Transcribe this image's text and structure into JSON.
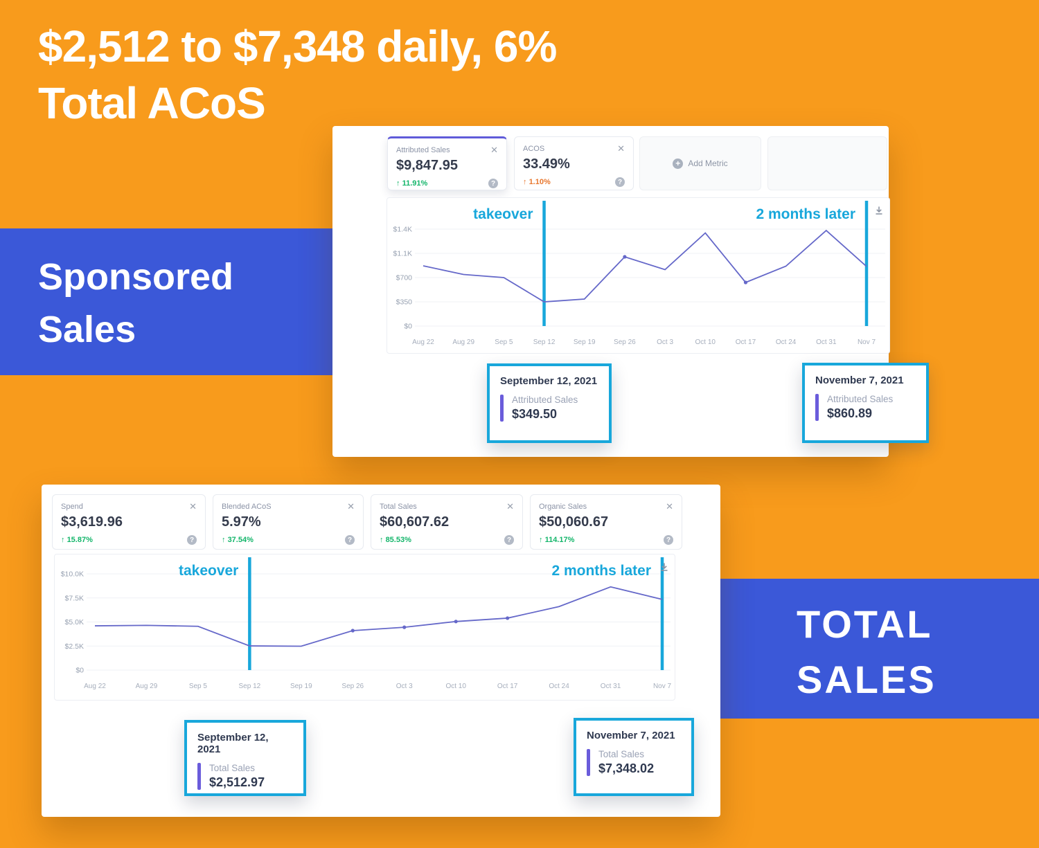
{
  "canvas": {
    "bg": "#F89B1C",
    "banner_blue": "#3B58D8",
    "accent_cyan": "#18A7DB",
    "line_purple": "#6568C9"
  },
  "headline": {
    "line1": "$2,512 to $7,348 daily, 6%",
    "line2": "Total ACoS"
  },
  "banner_left": {
    "line1": "Sponsored",
    "line2": "Sales"
  },
  "banner_right": {
    "line1": "TOTAL",
    "line2": "SALES"
  },
  "icons": {
    "close": "✕",
    "help": "?",
    "add": "+",
    "up": "↑"
  },
  "dashboard1": {
    "metrics": [
      {
        "label": "Attributed Sales",
        "value": "$9,847.95",
        "change": "11.91%"
      },
      {
        "label": "ACOS",
        "value": "33.49%",
        "change": "1.10%"
      }
    ],
    "add_metric": "Add Metric",
    "tooltips": [
      {
        "date": "September 12, 2021",
        "series": "Attributed Sales",
        "value": "$349.50"
      },
      {
        "date": "November 7, 2021",
        "series": "Attributed Sales",
        "value": "$860.89"
      }
    ]
  },
  "dashboard2": {
    "metrics": [
      {
        "label": "Spend",
        "value": "$3,619.96",
        "change": "15.87%"
      },
      {
        "label": "Blended ACoS",
        "value": "5.97%",
        "change": "37.54%"
      },
      {
        "label": "Total Sales",
        "value": "$60,607.62",
        "change": "85.53%"
      },
      {
        "label": "Organic Sales",
        "value": "$50,060.67",
        "change": "114.17%"
      }
    ],
    "tooltips": [
      {
        "date": "September 12, 2021",
        "series": "Total Sales",
        "value": "$2,512.97"
      },
      {
        "date": "November 7, 2021",
        "series": "Total Sales",
        "value": "$7,348.02"
      }
    ]
  },
  "chart_data": [
    {
      "type": "line",
      "name": "sponsored-attributed-sales",
      "title": "",
      "categories": [
        "Aug 22",
        "Aug 29",
        "Sep 5",
        "Sep 12",
        "Sep 19",
        "Sep 26",
        "Oct 3",
        "Oct 10",
        "Oct 17",
        "Oct 24",
        "Oct 31",
        "Nov 7"
      ],
      "values": [
        870,
        745,
        700,
        349.5,
        390,
        1000,
        815,
        1345,
        630,
        865,
        1380,
        860.89
      ],
      "ylim": [
        0,
        1400
      ],
      "yticks": [
        {
          "v": 0,
          "label": "$0"
        },
        {
          "v": 350,
          "label": "$350"
        },
        {
          "v": 700,
          "label": "$700"
        },
        {
          "v": 1050,
          "label": "$1.1K"
        },
        {
          "v": 1400,
          "label": "$1.4K"
        }
      ],
      "markers": [
        5,
        8
      ],
      "vlines": [
        {
          "index": 3,
          "label": "takeover"
        },
        {
          "index": 11,
          "label": "2 months later"
        }
      ],
      "grid": true,
      "legend": "none"
    },
    {
      "type": "line",
      "name": "total-sales",
      "title": "",
      "categories": [
        "Aug 22",
        "Aug 29",
        "Sep 5",
        "Sep 12",
        "Sep 19",
        "Sep 26",
        "Oct 3",
        "Oct 10",
        "Oct 17",
        "Oct 24",
        "Oct 31",
        "Nov 7"
      ],
      "values": [
        4600,
        4650,
        4550,
        2512.97,
        2480,
        4100,
        4450,
        5050,
        5400,
        6600,
        8650,
        7348.02
      ],
      "ylim": [
        0,
        10000
      ],
      "yticks": [
        {
          "v": 0,
          "label": "$0"
        },
        {
          "v": 2500,
          "label": "$2.5K"
        },
        {
          "v": 5000,
          "label": "$5.0K"
        },
        {
          "v": 7500,
          "label": "$7.5K"
        },
        {
          "v": 10000,
          "label": "$10.0K"
        }
      ],
      "markers": [
        5,
        6,
        7,
        8
      ],
      "vlines": [
        {
          "index": 3,
          "label": "takeover"
        },
        {
          "index": 11,
          "label": "2 months later"
        }
      ],
      "grid": true,
      "legend": "none"
    }
  ]
}
